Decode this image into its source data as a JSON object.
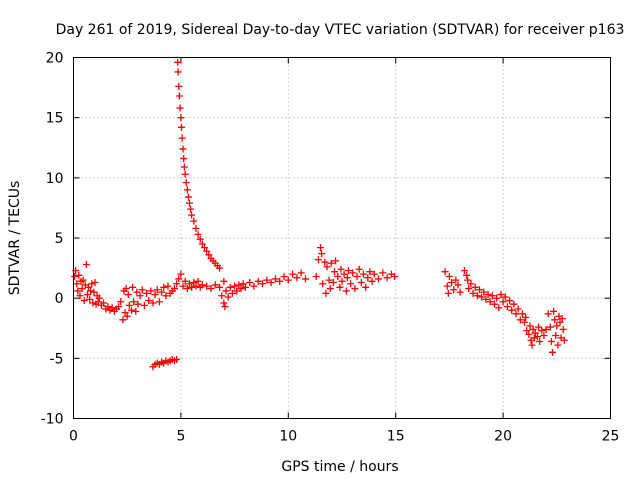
{
  "chart_data": {
    "type": "scatter",
    "title": "Day 261 of 2019, Sidereal Day-to-day VTEC variation (SDTVAR) for receiver p163",
    "xlabel": "GPS time / hours",
    "ylabel": "SDTVAR / TECUs",
    "xlim": [
      0,
      25
    ],
    "ylim": [
      -10,
      20
    ],
    "xticks": [
      0,
      5,
      10,
      15,
      20,
      25
    ],
    "yticks": [
      -10,
      -5,
      0,
      5,
      10,
      15,
      20
    ],
    "xtick_labels": [
      "0",
      "5",
      "10",
      "15",
      "20",
      "25"
    ],
    "ytick_labels": [
      "-10",
      "-5",
      "0",
      "5",
      "10",
      "15",
      "20"
    ],
    "grid": true,
    "legend": "none",
    "marker": "plus",
    "color": "#ff0000",
    "series": [
      {
        "name": "SDTVAR",
        "points": [
          [
            0.05,
            1.8
          ],
          [
            0.1,
            2.3
          ],
          [
            0.15,
            1.2
          ],
          [
            0.2,
            0.6
          ],
          [
            0.25,
            1.9
          ],
          [
            0.3,
            0.2
          ],
          [
            0.35,
            1.4
          ],
          [
            0.4,
            0.8
          ],
          [
            0.45,
            1.5
          ],
          [
            0.5,
            -0.2
          ],
          [
            0.55,
            1.1
          ],
          [
            0.6,
            2.8
          ],
          [
            0.65,
            0.3
          ],
          [
            0.7,
            0.9
          ],
          [
            0.75,
            -0.1
          ],
          [
            0.8,
            0.6
          ],
          [
            0.85,
            1.2
          ],
          [
            0.9,
            -0.4
          ],
          [
            0.95,
            0.5
          ],
          [
            1.0,
            1.3
          ],
          [
            1.05,
            -0.5
          ],
          [
            1.1,
            0.2
          ],
          [
            1.15,
            -0.3
          ],
          [
            1.2,
            0.0
          ],
          [
            1.3,
            -0.6
          ],
          [
            1.4,
            -0.4
          ],
          [
            1.5,
            -0.9
          ],
          [
            1.6,
            -0.7
          ],
          [
            1.7,
            -1.0
          ],
          [
            1.8,
            -0.8
          ],
          [
            1.9,
            -1.1
          ],
          [
            2.0,
            -0.9
          ],
          [
            2.1,
            -0.7
          ],
          [
            2.2,
            -0.3
          ],
          [
            2.3,
            -1.8
          ],
          [
            2.35,
            0.6
          ],
          [
            2.4,
            -1.2
          ],
          [
            2.45,
            0.8
          ],
          [
            2.5,
            -1.5
          ],
          [
            2.55,
            0.3
          ],
          [
            2.6,
            -0.6
          ],
          [
            2.7,
            -1.0
          ],
          [
            2.75,
            0.9
          ],
          [
            2.8,
            -0.3
          ],
          [
            2.9,
            -1.1
          ],
          [
            2.95,
            0.5
          ],
          [
            3.0,
            -0.5
          ],
          [
            3.1,
            0.2
          ],
          [
            3.2,
            0.7
          ],
          [
            3.3,
            -0.6
          ],
          [
            3.4,
            0.4
          ],
          [
            3.5,
            -0.2
          ],
          [
            3.6,
            0.6
          ],
          [
            3.7,
            -0.4
          ],
          [
            3.8,
            0.3
          ],
          [
            3.9,
            0.7
          ],
          [
            4.0,
            -0.3
          ],
          [
            4.1,
            0.5
          ],
          [
            4.2,
            0.9
          ],
          [
            4.3,
            0.2
          ],
          [
            4.4,
            1.0
          ],
          [
            4.5,
            0.4
          ],
          [
            4.6,
            0.6
          ],
          [
            4.7,
            0.8
          ],
          [
            4.8,
            1.2
          ],
          [
            3.7,
            -5.7
          ],
          [
            3.8,
            -5.5
          ],
          [
            3.9,
            -5.4
          ],
          [
            4.0,
            -5.5
          ],
          [
            4.1,
            -5.3
          ],
          [
            4.2,
            -5.4
          ],
          [
            4.3,
            -5.2
          ],
          [
            4.4,
            -5.3
          ],
          [
            4.5,
            -5.2
          ],
          [
            4.6,
            -5.1
          ],
          [
            4.7,
            -5.2
          ],
          [
            4.8,
            -5.1
          ],
          [
            4.85,
            19.6
          ],
          [
            4.87,
            18.8
          ],
          [
            4.9,
            17.6
          ],
          [
            4.93,
            16.8
          ],
          [
            4.96,
            15.8
          ],
          [
            5.0,
            15.0
          ],
          [
            5.03,
            14.2
          ],
          [
            5.06,
            13.3
          ],
          [
            5.1,
            12.4
          ],
          [
            5.13,
            11.6
          ],
          [
            5.16,
            10.9
          ],
          [
            5.2,
            10.3
          ],
          [
            5.25,
            9.6
          ],
          [
            5.3,
            9.0
          ],
          [
            5.35,
            8.4
          ],
          [
            5.4,
            7.9
          ],
          [
            5.45,
            7.4
          ],
          [
            5.5,
            6.9
          ],
          [
            5.6,
            6.4
          ],
          [
            5.7,
            5.8
          ],
          [
            5.8,
            5.3
          ],
          [
            5.9,
            4.9
          ],
          [
            6.0,
            4.5
          ],
          [
            6.1,
            4.2
          ],
          [
            6.2,
            3.9
          ],
          [
            6.3,
            3.6
          ],
          [
            6.4,
            3.3
          ],
          [
            6.5,
            3.1
          ],
          [
            6.6,
            2.9
          ],
          [
            6.7,
            2.7
          ],
          [
            6.8,
            2.5
          ],
          [
            4.9,
            1.6
          ],
          [
            5.0,
            2.0
          ],
          [
            5.1,
            1.0
          ],
          [
            5.2,
            1.4
          ],
          [
            5.3,
            0.8
          ],
          [
            5.4,
            1.2
          ],
          [
            5.5,
            0.9
          ],
          [
            5.6,
            1.3
          ],
          [
            5.7,
            1.0
          ],
          [
            5.8,
            1.4
          ],
          [
            5.9,
            0.9
          ],
          [
            6.0,
            1.1
          ],
          [
            6.2,
            1.0
          ],
          [
            6.4,
            0.8
          ],
          [
            6.6,
            1.1
          ],
          [
            6.8,
            0.9
          ],
          [
            7.0,
            1.4
          ],
          [
            6.9,
            0.2
          ],
          [
            7.0,
            -0.4
          ],
          [
            7.05,
            -0.7
          ],
          [
            7.1,
            0.6
          ],
          [
            7.2,
            0.1
          ],
          [
            7.3,
            0.9
          ],
          [
            7.4,
            0.4
          ],
          [
            7.5,
            1.0
          ],
          [
            7.6,
            0.6
          ],
          [
            7.7,
            1.1
          ],
          [
            7.8,
            0.8
          ],
          [
            7.9,
            1.2
          ],
          [
            8.0,
            0.9
          ],
          [
            8.2,
            1.3
          ],
          [
            8.4,
            1.0
          ],
          [
            8.6,
            1.4
          ],
          [
            8.8,
            1.2
          ],
          [
            9.0,
            1.5
          ],
          [
            9.2,
            1.3
          ],
          [
            9.4,
            1.6
          ],
          [
            9.6,
            1.4
          ],
          [
            9.8,
            1.8
          ],
          [
            10.0,
            1.5
          ],
          [
            10.2,
            2.0
          ],
          [
            10.4,
            1.7
          ],
          [
            10.6,
            2.1
          ],
          [
            10.8,
            1.6
          ],
          [
            11.3,
            1.8
          ],
          [
            11.4,
            3.2
          ],
          [
            11.5,
            4.2
          ],
          [
            11.55,
            3.7
          ],
          [
            11.6,
            1.2
          ],
          [
            11.7,
            3.0
          ],
          [
            11.75,
            0.4
          ],
          [
            11.8,
            2.6
          ],
          [
            11.9,
            1.5
          ],
          [
            11.95,
            0.8
          ],
          [
            12.0,
            2.9
          ],
          [
            12.1,
            1.3
          ],
          [
            12.15,
            2.2
          ],
          [
            12.2,
            3.1
          ],
          [
            12.3,
            1.8
          ],
          [
            12.4,
            0.9
          ],
          [
            12.45,
            2.4
          ],
          [
            12.5,
            1.4
          ],
          [
            12.6,
            2.0
          ],
          [
            12.7,
            0.6
          ],
          [
            12.75,
            1.7
          ],
          [
            12.8,
            2.3
          ],
          [
            12.9,
            1.2
          ],
          [
            13.0,
            2.1
          ],
          [
            13.1,
            0.8
          ],
          [
            13.2,
            1.8
          ],
          [
            13.3,
            2.4
          ],
          [
            13.4,
            1.3
          ],
          [
            13.5,
            2.0
          ],
          [
            13.6,
            0.9
          ],
          [
            13.7,
            1.7
          ],
          [
            13.8,
            2.2
          ],
          [
            13.9,
            1.4
          ],
          [
            14.0,
            2.0
          ],
          [
            14.2,
            1.6
          ],
          [
            14.4,
            2.1
          ],
          [
            14.6,
            1.7
          ],
          [
            14.8,
            2.0
          ],
          [
            14.95,
            1.8
          ],
          [
            17.3,
            2.2
          ],
          [
            17.4,
            1.0
          ],
          [
            17.45,
            0.4
          ],
          [
            17.5,
            1.8
          ],
          [
            17.6,
            1.3
          ],
          [
            17.7,
            0.7
          ],
          [
            17.8,
            1.5
          ],
          [
            17.9,
            1.1
          ],
          [
            18.0,
            0.5
          ],
          [
            18.2,
            2.3
          ],
          [
            18.3,
            1.9
          ],
          [
            18.35,
            1.5
          ],
          [
            18.4,
            0.8
          ],
          [
            18.5,
            1.2
          ],
          [
            18.6,
            0.4
          ],
          [
            18.7,
            0.9
          ],
          [
            18.8,
            0.2
          ],
          [
            18.9,
            0.7
          ],
          [
            19.0,
            0.1
          ],
          [
            19.1,
            0.5
          ],
          [
            19.2,
            -0.1
          ],
          [
            19.3,
            0.3
          ],
          [
            19.4,
            -0.3
          ],
          [
            19.5,
            0.2
          ],
          [
            19.6,
            -0.5
          ],
          [
            19.7,
            0.0
          ],
          [
            19.8,
            -0.8
          ],
          [
            19.9,
            0.3
          ],
          [
            20.0,
            -0.3
          ],
          [
            20.1,
            0.1
          ],
          [
            20.2,
            -0.7
          ],
          [
            20.3,
            -0.2
          ],
          [
            20.4,
            -1.0
          ],
          [
            20.5,
            -0.5
          ],
          [
            20.6,
            -1.3
          ],
          [
            20.7,
            -0.9
          ],
          [
            20.8,
            -1.8
          ],
          [
            20.9,
            -1.3
          ],
          [
            21.0,
            -2.0
          ],
          [
            21.05,
            -1.6
          ],
          [
            21.1,
            -2.7
          ],
          [
            21.2,
            -3.0
          ],
          [
            21.25,
            -2.3
          ],
          [
            21.3,
            -3.5
          ],
          [
            21.35,
            -3.9
          ],
          [
            21.4,
            -2.6
          ],
          [
            21.45,
            -3.3
          ],
          [
            21.5,
            -2.9
          ],
          [
            21.6,
            -3.2
          ],
          [
            21.65,
            -2.4
          ],
          [
            21.7,
            -3.6
          ],
          [
            21.8,
            -2.7
          ],
          [
            21.9,
            -3.1
          ],
          [
            22.0,
            -2.6
          ],
          [
            22.1,
            -1.3
          ],
          [
            22.2,
            -2.4
          ],
          [
            22.25,
            -3.6
          ],
          [
            22.3,
            -4.5
          ],
          [
            22.35,
            -1.1
          ],
          [
            22.4,
            -1.8
          ],
          [
            22.45,
            -3.1
          ],
          [
            22.5,
            -2.3
          ],
          [
            22.55,
            -3.9
          ],
          [
            22.6,
            -1.5
          ],
          [
            22.65,
            -2.0
          ],
          [
            22.7,
            -3.3
          ],
          [
            22.75,
            -1.7
          ],
          [
            22.8,
            -2.6
          ],
          [
            22.85,
            -3.5
          ]
        ]
      }
    ]
  }
}
